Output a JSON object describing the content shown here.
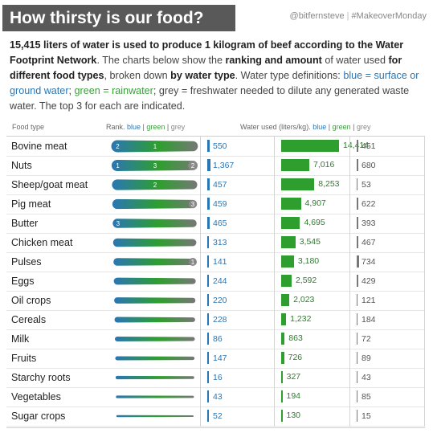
{
  "header": {
    "title": "How thirsty is our food?",
    "credit_user": "@bitfernsteve",
    "credit_tag": "#MakeoverMonday"
  },
  "intro": {
    "p1_bold": "15,415 liters of water is used to produce 1 kilogram of beef according to the Water Footprint Network",
    "p2": ". The charts below show the ",
    "p3_bold": "ranking and amount",
    "p4": " of water used ",
    "p5_bold": "for different food types",
    "p6": ", broken down ",
    "p7_bold": "by water type",
    "p8": ". Water type definitions: ",
    "blue_def": "blue = surface or ground water",
    "sep1": "; ",
    "green_def": "green = rainwater",
    "sep2": "; ",
    "grey_def": "grey = freshwater needed to dilute any generated waste water",
    "p9": ". The top 3 for each are indicated."
  },
  "columns": {
    "food": "Food type",
    "rank_prefix": "Rank. ",
    "water_prefix": "Water used (liters/kg). ",
    "blue": "blue",
    "green": "green",
    "grey": "grey",
    "sep": " | "
  },
  "colors": {
    "blue": "#2a76b5",
    "green": "#2e9f2e",
    "grey": "#777777"
  },
  "chart_data": {
    "type": "table",
    "rows": [
      {
        "food": "Bovine meat",
        "blue": "550",
        "green": "14,414",
        "grey": "451",
        "blue_v": 550,
        "green_v": 14414,
        "grey_v": 451,
        "rank_blue": "2",
        "rank_green": "1",
        "rank_grey": ""
      },
      {
        "food": "Nuts",
        "blue": "1,367",
        "green": "7,016",
        "grey": "680",
        "blue_v": 1367,
        "green_v": 7016,
        "grey_v": 680,
        "rank_blue": "1",
        "rank_green": "3",
        "rank_grey": "2"
      },
      {
        "food": "Sheep/goat meat",
        "blue": "457",
        "green": "8,253",
        "grey": "53",
        "blue_v": 457,
        "green_v": 8253,
        "grey_v": 53,
        "rank_blue": "",
        "rank_green": "2",
        "rank_grey": ""
      },
      {
        "food": "Pig meat",
        "blue": "459",
        "green": "4,907",
        "grey": "622",
        "blue_v": 459,
        "green_v": 4907,
        "grey_v": 622,
        "rank_blue": "",
        "rank_green": "",
        "rank_grey": "3"
      },
      {
        "food": "Butter",
        "blue": "465",
        "green": "4,695",
        "grey": "393",
        "blue_v": 465,
        "green_v": 4695,
        "grey_v": 393,
        "rank_blue": "3",
        "rank_green": "",
        "rank_grey": ""
      },
      {
        "food": "Chicken meat",
        "blue": "313",
        "green": "3,545",
        "grey": "467",
        "blue_v": 313,
        "green_v": 3545,
        "grey_v": 467,
        "rank_blue": "",
        "rank_green": "",
        "rank_grey": ""
      },
      {
        "food": "Pulses",
        "blue": "141",
        "green": "3,180",
        "grey": "734",
        "blue_v": 141,
        "green_v": 3180,
        "grey_v": 734,
        "rank_blue": "",
        "rank_green": "",
        "rank_grey": "1"
      },
      {
        "food": "Eggs",
        "blue": "244",
        "green": "2,592",
        "grey": "429",
        "blue_v": 244,
        "green_v": 2592,
        "grey_v": 429,
        "rank_blue": "",
        "rank_green": "",
        "rank_grey": ""
      },
      {
        "food": "Oil crops",
        "blue": "220",
        "green": "2,023",
        "grey": "121",
        "blue_v": 220,
        "green_v": 2023,
        "grey_v": 121,
        "rank_blue": "",
        "rank_green": "",
        "rank_grey": ""
      },
      {
        "food": "Cereals",
        "blue": "228",
        "green": "1,232",
        "grey": "184",
        "blue_v": 228,
        "green_v": 1232,
        "grey_v": 184,
        "rank_blue": "",
        "rank_green": "",
        "rank_grey": ""
      },
      {
        "food": "Milk",
        "blue": "86",
        "green": "863",
        "grey": "72",
        "blue_v": 86,
        "green_v": 863,
        "grey_v": 72,
        "rank_blue": "",
        "rank_green": "",
        "rank_grey": ""
      },
      {
        "food": "Fruits",
        "blue": "147",
        "green": "726",
        "grey": "89",
        "blue_v": 147,
        "green_v": 726,
        "grey_v": 89,
        "rank_blue": "",
        "rank_green": "",
        "rank_grey": ""
      },
      {
        "food": "Starchy roots",
        "blue": "16",
        "green": "327",
        "grey": "43",
        "blue_v": 16,
        "green_v": 327,
        "grey_v": 43,
        "rank_blue": "",
        "rank_green": "",
        "rank_grey": ""
      },
      {
        "food": "Vegetables",
        "blue": "43",
        "green": "194",
        "grey": "85",
        "blue_v": 43,
        "green_v": 194,
        "grey_v": 85,
        "rank_blue": "",
        "rank_green": "",
        "rank_grey": ""
      },
      {
        "food": "Sugar crops",
        "blue": "52",
        "green": "130",
        "grey": "15",
        "blue_v": 52,
        "green_v": 130,
        "grey_v": 15,
        "rank_blue": "",
        "rank_green": "",
        "rank_grey": ""
      }
    ]
  }
}
